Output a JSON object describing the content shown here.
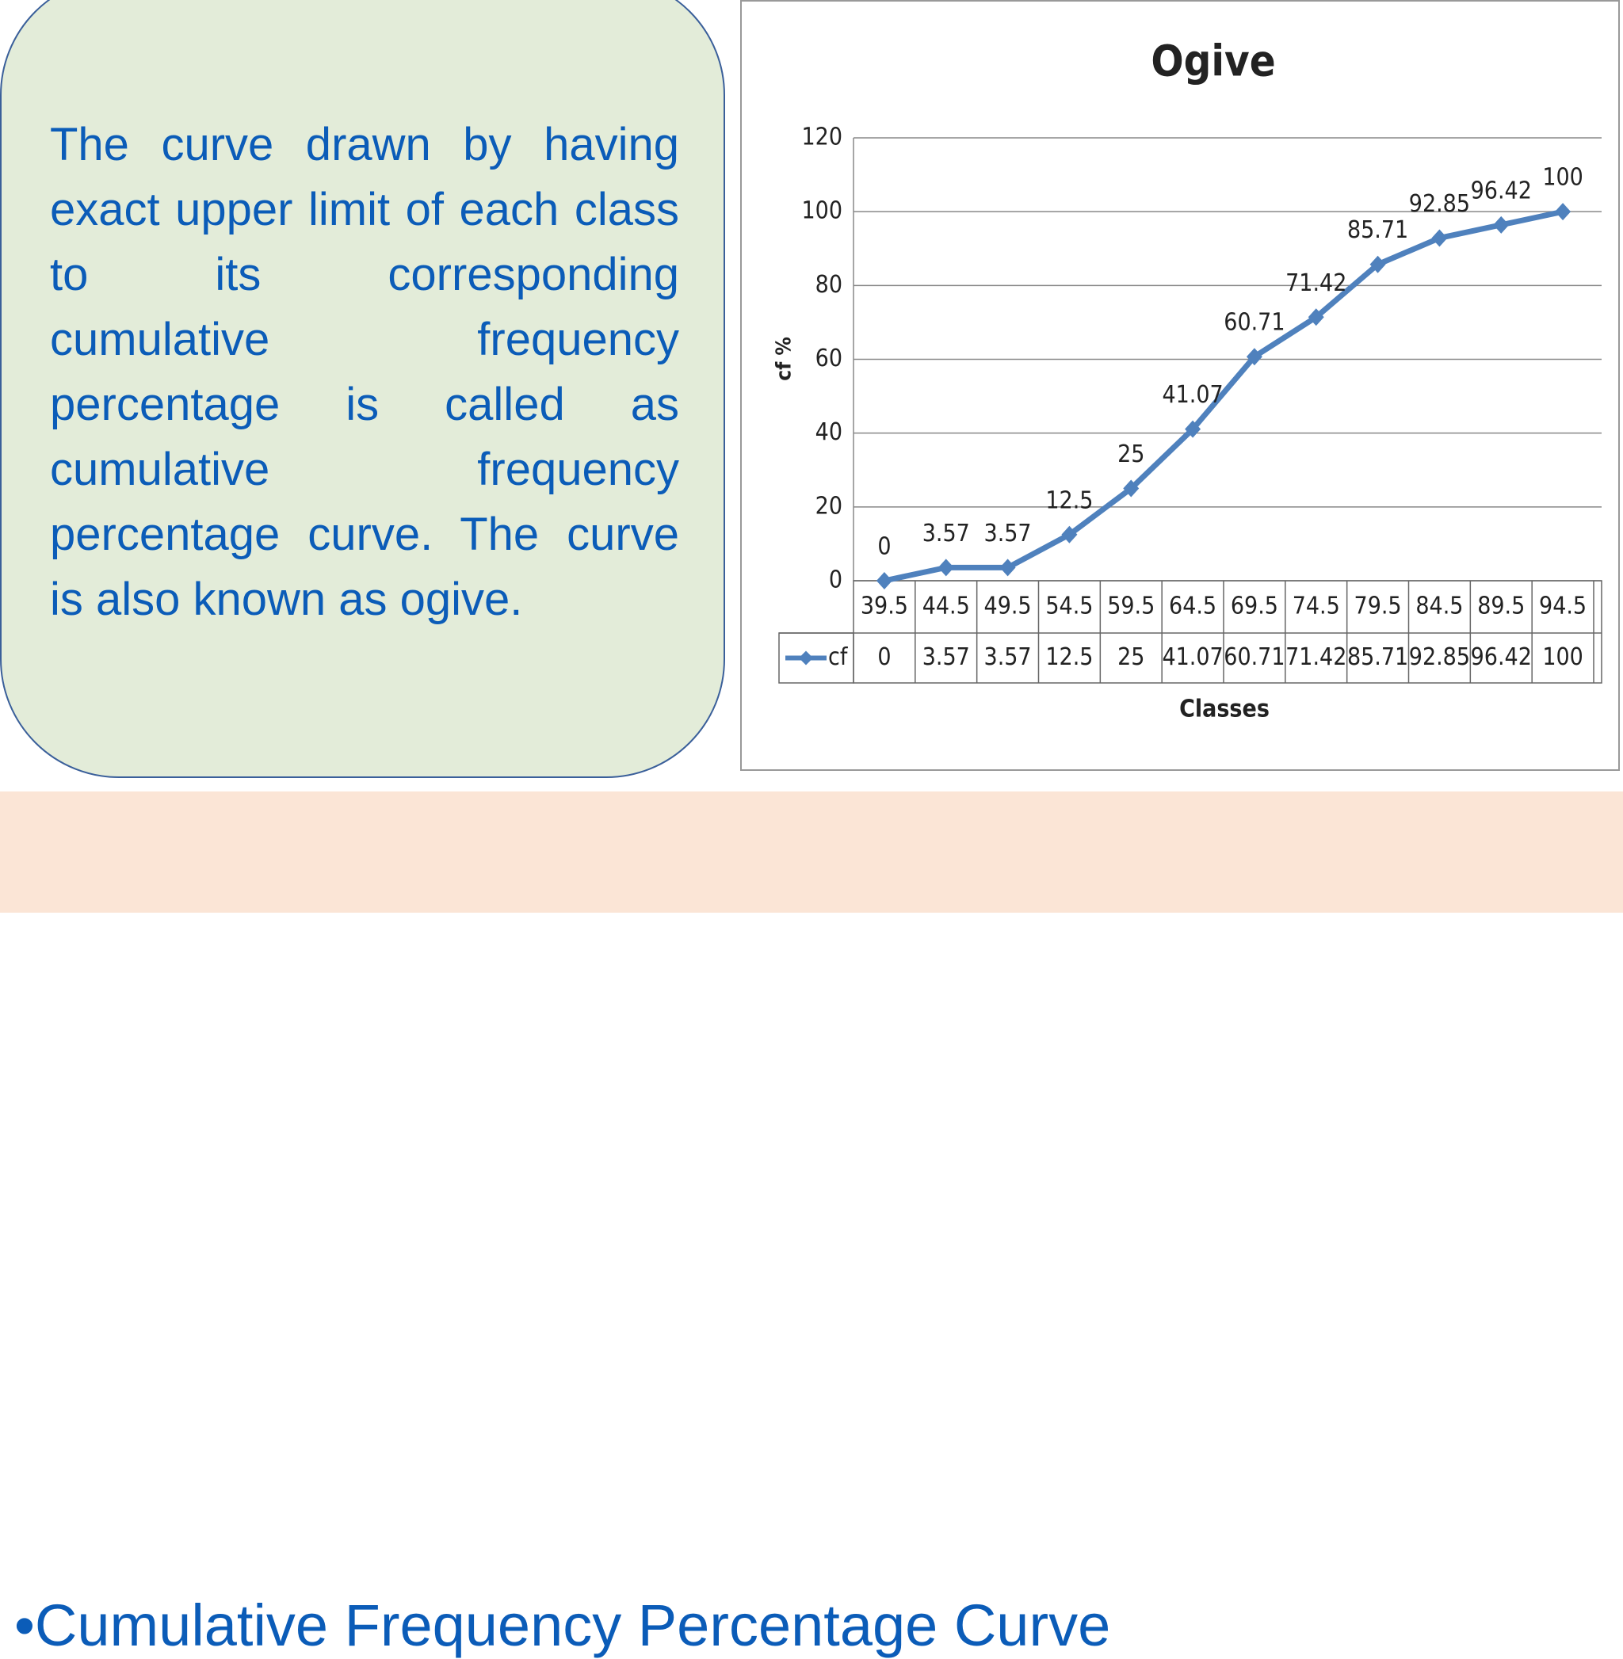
{
  "text_box": {
    "text": "The curve drawn by having exact upper limit of each class to its corresponding cumulative frequency percentage is called as cumulative frequency percentage curve. The curve is also known as ogive."
  },
  "bullet": "Cumulative Frequency Percentage Curve",
  "chart_data": {
    "type": "line",
    "title": "Ogive",
    "ylabel": "cf %",
    "xlabel": "Classes",
    "categories": [
      "39.5",
      "44.5",
      "49.5",
      "54.5",
      "59.5",
      "64.5",
      "69.5",
      "74.5",
      "79.5",
      "84.5",
      "89.5",
      "94.5"
    ],
    "series": [
      {
        "name": "cf",
        "color": "#4f81bd",
        "values": [
          0,
          3.57,
          3.57,
          12.5,
          25,
          41.07,
          60.71,
          71.42,
          85.71,
          92.85,
          96.42,
          100
        ]
      }
    ],
    "ylim": [
      0,
      120
    ],
    "yticks": [
      0,
      20,
      40,
      60,
      80,
      100,
      120
    ],
    "grid": true,
    "data_table": true
  }
}
